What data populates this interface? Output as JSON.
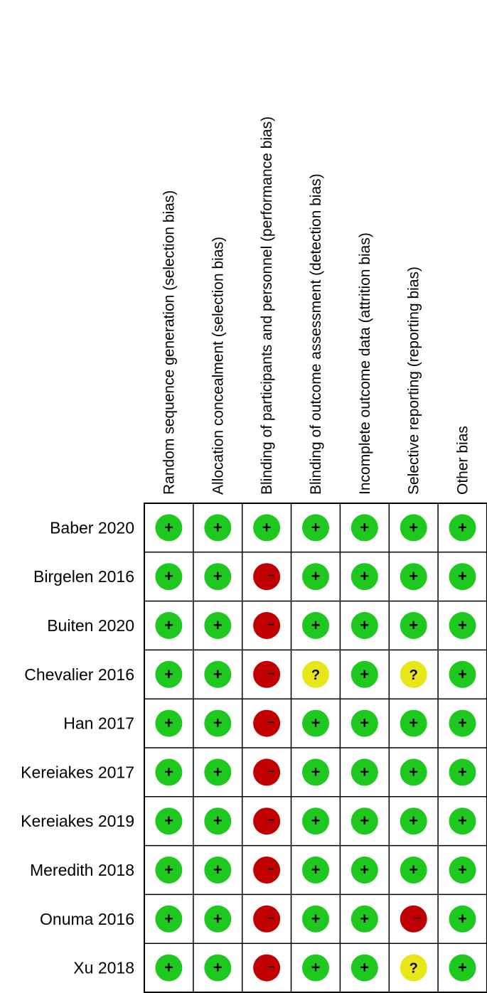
{
  "chart_data": {
    "type": "table",
    "columns": [
      "Random sequence generation (selection bias)",
      "Allocation concealment (selection bias)",
      "Blinding of participants and personnel (performance bias)",
      "Blinding of outcome assessment (detection bias)",
      "Incomplete outcome data (attrition bias)",
      "Selective reporting (reporting bias)",
      "Other bias"
    ],
    "rows": [
      {
        "study": "Baber 2020",
        "judgements": [
          "+",
          "+",
          "+",
          "+",
          "+",
          "+",
          "+"
        ]
      },
      {
        "study": "Birgelen 2016",
        "judgements": [
          "+",
          "+",
          "-",
          "+",
          "+",
          "+",
          "+"
        ]
      },
      {
        "study": "Buiten 2020",
        "judgements": [
          "+",
          "+",
          "-",
          "+",
          "+",
          "+",
          "+"
        ]
      },
      {
        "study": "Chevalier 2016",
        "judgements": [
          "+",
          "+",
          "-",
          "?",
          "+",
          "?",
          "+"
        ]
      },
      {
        "study": "Han 2017",
        "judgements": [
          "+",
          "+",
          "-",
          "+",
          "+",
          "+",
          "+"
        ]
      },
      {
        "study": "Kereiakes 2017",
        "judgements": [
          "+",
          "+",
          "-",
          "+",
          "+",
          "+",
          "+"
        ]
      },
      {
        "study": "Kereiakes 2019",
        "judgements": [
          "+",
          "+",
          "-",
          "+",
          "+",
          "+",
          "+"
        ]
      },
      {
        "study": "Meredith 2018",
        "judgements": [
          "+",
          "+",
          "-",
          "+",
          "+",
          "+",
          "+"
        ]
      },
      {
        "study": "Onuma 2016",
        "judgements": [
          "+",
          "+",
          "-",
          "+",
          "+",
          "-",
          "+"
        ]
      },
      {
        "study": "Xu 2018",
        "judgements": [
          "+",
          "+",
          "-",
          "+",
          "+",
          "?",
          "+"
        ]
      }
    ],
    "symbols": {
      "+": {
        "color": "#1ec81e",
        "glyph": "+"
      },
      "-": {
        "color": "#c00000",
        "glyph": "−"
      },
      "?": {
        "color": "#e6e619",
        "glyph": "?"
      }
    }
  }
}
